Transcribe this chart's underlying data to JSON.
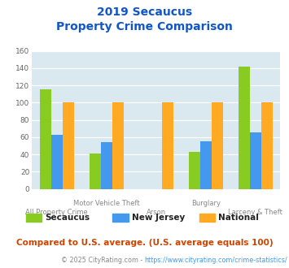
{
  "title_line1": "2019 Secaucus",
  "title_line2": "Property Crime Comparison",
  "categories": [
    "All Property Crime",
    "Motor Vehicle Theft",
    "Arson",
    "Burglary",
    "Larceny & Theft"
  ],
  "series": {
    "Secaucus": [
      115,
      41,
      0,
      43,
      142
    ],
    "New Jersey": [
      63,
      54,
      0,
      55,
      66
    ],
    "National": [
      100,
      100,
      100,
      100,
      100
    ]
  },
  "arson_missing": [
    true,
    false,
    true,
    false,
    false
  ],
  "colors": {
    "Secaucus": "#88cc22",
    "New Jersey": "#4499ee",
    "National": "#ffaa22"
  },
  "ylim": [
    0,
    160
  ],
  "yticks": [
    0,
    20,
    40,
    60,
    80,
    100,
    120,
    140,
    160
  ],
  "plot_bg": "#dae8f0",
  "title_color": "#1155cc",
  "footer_text": "Compared to U.S. average. (U.S. average equals 100)",
  "footer_color": "#cc4400",
  "copyright_prefix": "© 2025 CityRating.com - ",
  "copyright_url": "https://www.cityrating.com/crime-statistics/",
  "copyright_color": "#888888",
  "copyright_url_color": "#4499ee",
  "bar_width": 0.23
}
